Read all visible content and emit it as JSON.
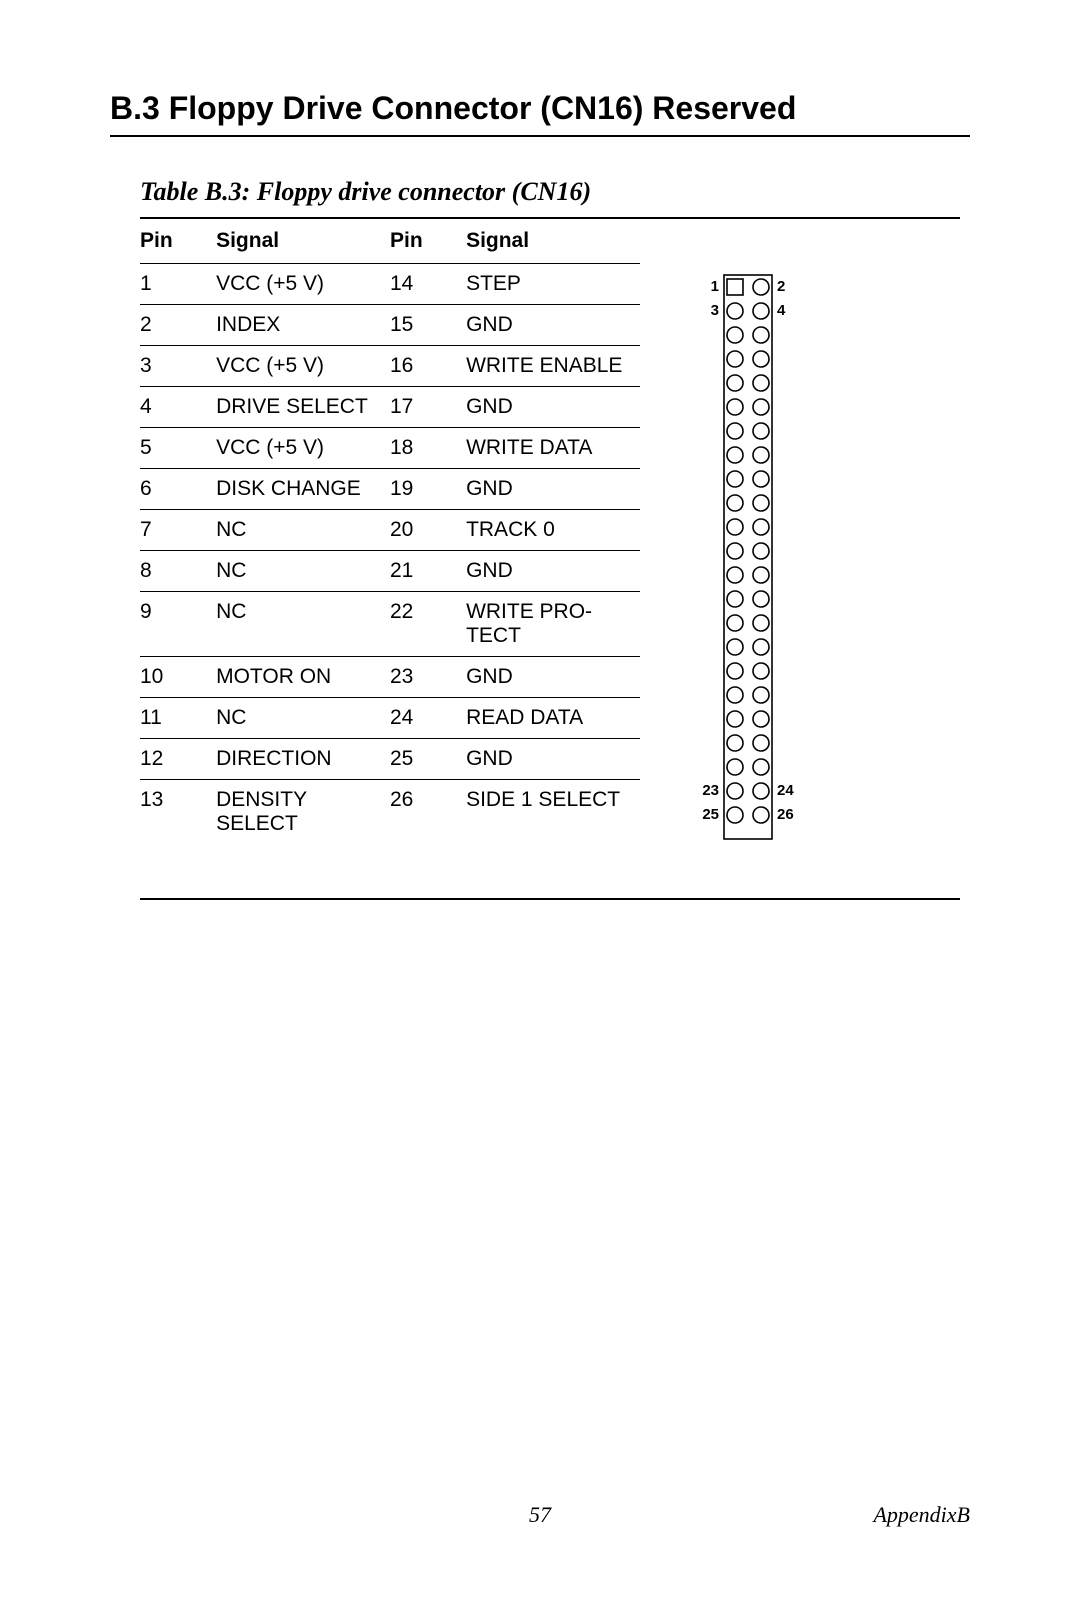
{
  "section_heading": "B.3  Floppy Drive Connector (CN16) Reserved",
  "table_caption": "Table B.3: Floppy drive connector (CN16)",
  "headers": {
    "pin_a": "Pin",
    "sig_a": "Signal",
    "pin_b": "Pin",
    "sig_b": "Signal"
  },
  "rows": [
    {
      "pa": "1",
      "sa": "VCC (+5 V)",
      "pb": "14",
      "sb": "STEP"
    },
    {
      "pa": "2",
      "sa": "INDEX",
      "pb": "15",
      "sb": "GND"
    },
    {
      "pa": "3",
      "sa": "VCC (+5 V)",
      "pb": "16",
      "sb": "WRITE ENABLE"
    },
    {
      "pa": "4",
      "sa": "DRIVE SELECT",
      "pb": "17",
      "sb": "GND"
    },
    {
      "pa": "5",
      "sa": "VCC (+5 V)",
      "pb": "18",
      "sb": "WRITE DATA"
    },
    {
      "pa": "6",
      "sa": "DISK CHANGE",
      "pb": "19",
      "sb": "GND"
    },
    {
      "pa": "7",
      "sa": "NC",
      "pb": "20",
      "sb": "TRACK 0"
    },
    {
      "pa": "8",
      "sa": "NC",
      "pb": "21",
      "sb": "GND"
    },
    {
      "pa": "9",
      "sa": "NC",
      "pb": "22",
      "sb": "WRITE PRO-TECT"
    },
    {
      "pa": "10",
      "sa": "MOTOR ON",
      "pb": "23",
      "sb": "GND"
    },
    {
      "pa": "11",
      "sa": "NC",
      "pb": "24",
      "sb": "READ DATA"
    },
    {
      "pa": "12",
      "sa": "DIRECTION",
      "pb": "25",
      "sb": "GND"
    },
    {
      "pa": "13",
      "sa": "DENSITY SELECT",
      "pb": "26",
      "sb": "SIDE 1 SELECT"
    }
  ],
  "diagram": {
    "rows": 13,
    "pin1_shape": "square",
    "pin_radius": 8,
    "col_spacing": 26,
    "row_spacing": 24,
    "stroke": "#000000",
    "stroke_width": 1.6,
    "labels": {
      "tl": "1",
      "tr": "2",
      "l2": "3",
      "r2": "4",
      "bl": "25",
      "br": "26",
      "l_b2": "23",
      "r_b2": "24"
    },
    "label_fontsize": 15,
    "label_weight": "bold"
  },
  "footer": {
    "page": "57",
    "appendix": "AppendixB"
  },
  "colors": {
    "text": "#000000",
    "background": "#ffffff",
    "rule": "#000000"
  }
}
